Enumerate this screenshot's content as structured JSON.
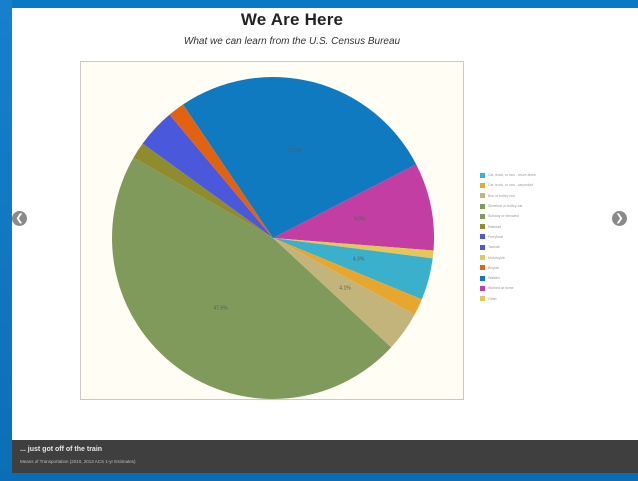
{
  "slide": {
    "title": "We Are Here",
    "subtitle": "What we can learn from the U.S. Census Bureau"
  },
  "navigation": {
    "prev_icon": "chevron-left-icon",
    "next_icon": "chevron-right-icon",
    "prev_glyph": "❮",
    "next_glyph": "❯"
  },
  "caption": {
    "title": "... just got off of the train",
    "subtitle": "Means of Transportation (2010, 2013 ACS 1-yr Estimates)"
  },
  "chart_data": {
    "type": "pie",
    "legend_position": "right",
    "slices": [
      {
        "label": "Car, truck, or van - drove alone",
        "value": 27.5,
        "color": "#0f7ac0"
      },
      {
        "label": "Car, truck, or van - carpooled",
        "value": 9.0,
        "color": "#c23ea3"
      },
      {
        "label": "Bus or trolley bus",
        "value": 0.8,
        "color": "#e4c65a"
      },
      {
        "label": "Subway or elevated",
        "value": 4.3,
        "color": "#3ab0cc"
      },
      {
        "label": "Railroad",
        "value": 1.7,
        "color": "#e7a72e"
      },
      {
        "label": "Ferryboat",
        "value": 4.1,
        "color": "#c3b47c"
      },
      {
        "label": "Walked",
        "value": 47.5,
        "color": "#7f9a5a"
      },
      {
        "label": "Other means",
        "value": 1.7,
        "color": "#8f8c2e"
      },
      {
        "label": "Worked at home",
        "value": 4.0,
        "color": "#4a58dc"
      },
      {
        "label": "Bicycle",
        "value": 1.7,
        "color": "#e2620f"
      }
    ],
    "slice_values_text": [
      "27.5%",
      "9.0%",
      "",
      "4.3%",
      "",
      "4.1%",
      "47.5%",
      "",
      "",
      ""
    ],
    "legend_entries": [
      {
        "label": "Car, truck, or van - drove alone",
        "color": "#3ab0cc"
      },
      {
        "label": "Car, truck, or van - carpooled",
        "color": "#e7a72e"
      },
      {
        "label": "Bus or trolley bus",
        "color": "#c3b47c"
      },
      {
        "label": "Streetcar or trolley car",
        "color": "#7f9a5a"
      },
      {
        "label": "Subway or elevated",
        "color": "#7f9a5a"
      },
      {
        "label": "Railroad",
        "color": "#8f8c2e"
      },
      {
        "label": "Ferryboat",
        "color": "#4a58dc"
      },
      {
        "label": "Taxicab",
        "color": "#4a58dc"
      },
      {
        "label": "Motorcycle",
        "color": "#e4c65a"
      },
      {
        "label": "Bicycle",
        "color": "#e2620f"
      },
      {
        "label": "Walked",
        "color": "#0f7ac0"
      },
      {
        "label": "Worked at home",
        "color": "#c23ea3"
      },
      {
        "label": "Other",
        "color": "#e4c65a"
      }
    ]
  }
}
